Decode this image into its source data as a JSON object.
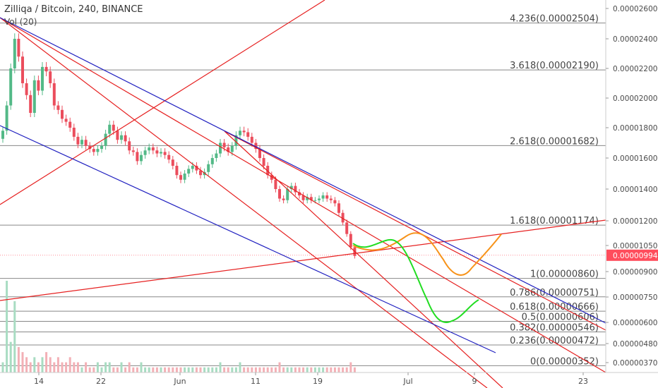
{
  "header": {
    "title": "Zilliqa / Bitcoin, 240, BINANCE",
    "volume_label": "Vol (20)"
  },
  "colors": {
    "up": "#53b987",
    "down": "#eb4d5c",
    "fib": "#888888",
    "red_lines": "#e62020",
    "blue_lines": "#2020c0",
    "projection_orange": "#f7931a",
    "projection_green": "#22dd22",
    "last_price_bg": "#ff4d5c"
  },
  "chart_data": {
    "type": "candlestick",
    "pair": "Zilliqa / Bitcoin",
    "interval": "240",
    "exchange": "BINANCE",
    "price_axis_labels": [
      "0.00002600",
      "0.00002400",
      "0.00002200",
      "0.00002000",
      "0.00001800",
      "0.00001600",
      "0.00001400",
      "0.00001200",
      "0.00001050",
      "0.00000900",
      "0.00000750",
      "0.00000600",
      "0.00000480",
      "0.00000370"
    ],
    "time_axis_labels": [
      "14",
      "22",
      "Jun",
      "11",
      "19",
      "Jul",
      "9",
      "23"
    ],
    "last_price": "0.00000994",
    "fib_levels": [
      {
        "label": "4.236(0.00002504)",
        "value": 2.504e-05
      },
      {
        "label": "3.618(0.00002190)",
        "value": 2.19e-05
      },
      {
        "label": "2.618(0.00001682)",
        "value": 1.682e-05
      },
      {
        "label": "1.618(0.00001174)",
        "value": 1.174e-05
      },
      {
        "label": "1(0.00000860)",
        "value": 8.6e-06
      },
      {
        "label": "0.786(0.00000751)",
        "value": 7.51e-06
      },
      {
        "label": "0.618(0.00000666)",
        "value": 6.66e-06
      },
      {
        "label": "0.5(0.00000606)",
        "value": 6.06e-06
      },
      {
        "label": "0.382(0.00000546)",
        "value": 5.46e-06
      },
      {
        "label": "0.236(0.00000472)",
        "value": 4.72e-06
      },
      {
        "label": "0(0.00000352)",
        "value": 3.52e-06
      }
    ],
    "candle_closes": [
      1.78e-05,
      1.95e-05,
      2.2e-05,
      2.4e-05,
      2.28e-05,
      2.1e-05,
      2.02e-05,
      1.9e-05,
      2.12e-05,
      2.05e-05,
      2.21e-05,
      2.18e-05,
      2.1e-05,
      1.95e-05,
      1.92e-05,
      1.86e-05,
      1.84e-05,
      1.8e-05,
      1.74e-05,
      1.69e-05,
      1.72e-05,
      1.68e-05,
      1.66e-05,
      1.64e-05,
      1.66e-05,
      1.68e-05,
      1.76e-05,
      1.82e-05,
      1.78e-05,
      1.72e-05,
      1.75e-05,
      1.71e-05,
      1.65e-05,
      1.64e-05,
      1.58e-05,
      1.62e-05,
      1.65e-05,
      1.67e-05,
      1.65e-05,
      1.63e-05,
      1.64e-05,
      1.62e-05,
      1.59e-05,
      1.55e-05,
      1.49e-05,
      1.46e-05,
      1.5e-05,
      1.53e-05,
      1.55e-05,
      1.52e-05,
      1.49e-05,
      1.51e-05,
      1.56e-05,
      1.6e-05,
      1.63e-05,
      1.7e-05,
      1.67e-05,
      1.64e-05,
      1.68e-05,
      1.75e-05,
      1.78e-05,
      1.77e-05,
      1.74e-05,
      1.7e-05,
      1.66e-05,
      1.6e-05,
      1.55e-05,
      1.49e-05,
      1.46e-05,
      1.4e-05,
      1.34e-05,
      1.33e-05,
      1.4e-05,
      1.42e-05,
      1.38e-05,
      1.36e-05,
      1.33e-05,
      1.35e-05,
      1.33e-05,
      1.33e-05,
      1.34e-05,
      1.36e-05,
      1.34e-05,
      1.33e-05,
      1.31e-05,
      1.25e-05,
      1.19e-05,
      1.12e-05,
      1.04e-05,
      9.9e-06
    ],
    "volume_values": [
      2,
      18,
      6,
      14,
      5,
      4,
      3,
      2,
      3,
      2,
      3,
      4,
      3,
      2,
      3,
      2,
      2,
      3,
      2,
      2,
      1,
      2,
      1,
      1,
      2,
      1,
      2,
      2,
      1,
      1,
      2,
      1,
      2,
      1,
      1,
      2,
      1,
      1,
      1,
      1,
      1,
      1,
      1,
      1,
      1,
      1,
      1,
      1,
      1,
      1,
      1,
      1,
      1,
      1,
      1,
      2,
      1,
      1,
      1,
      1,
      2,
      1,
      1,
      1,
      1,
      1,
      1,
      1,
      1,
      1,
      2,
      1,
      1,
      1,
      1,
      1,
      1,
      1,
      1,
      1,
      1,
      1,
      1,
      1,
      1,
      1,
      1,
      1,
      2,
      1
    ]
  }
}
